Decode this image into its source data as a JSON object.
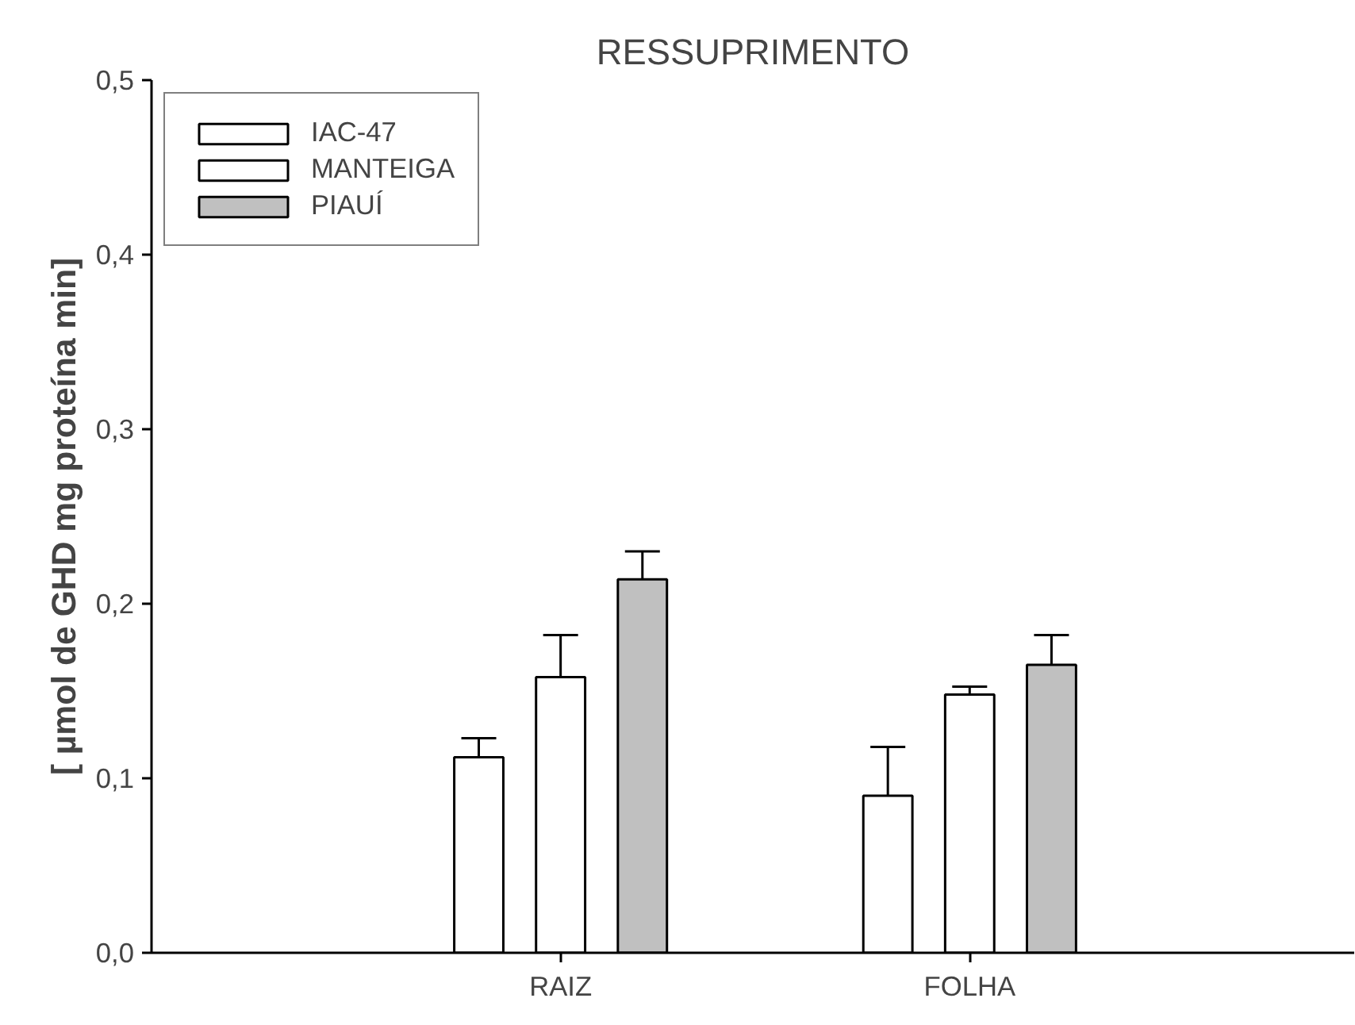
{
  "chart_data": {
    "type": "bar",
    "title": "RESSUPRIMENTO",
    "ylabel": "[ µmol de GHD mg proteína min]",
    "categories": [
      "RAIZ",
      "FOLHA"
    ],
    "series": [
      {
        "name": "IAC-47",
        "color": "#ffffff",
        "values": [
          0.112,
          0.09
        ],
        "errors": [
          0.011,
          0.028
        ]
      },
      {
        "name": "MANTEIGA",
        "color": "#ffffff",
        "values": [
          0.158,
          0.148
        ],
        "errors": [
          0.024,
          0.0045
        ]
      },
      {
        "name": "PIAUÍ",
        "color": "#c0c0c0",
        "values": [
          0.214,
          0.165
        ],
        "errors": [
          0.016,
          0.017
        ]
      }
    ],
    "ylim": [
      0,
      0.5
    ],
    "yticks": [
      {
        "value": 0,
        "label": "0,0"
      },
      {
        "value": 0.1,
        "label": "0,1"
      },
      {
        "value": 0.2,
        "label": "0,2"
      },
      {
        "value": 0.3,
        "label": "0,3"
      },
      {
        "value": 0.4,
        "label": "0,4"
      },
      {
        "value": 0.5,
        "label": "0,5"
      }
    ],
    "grid": false,
    "legend": "top left"
  }
}
